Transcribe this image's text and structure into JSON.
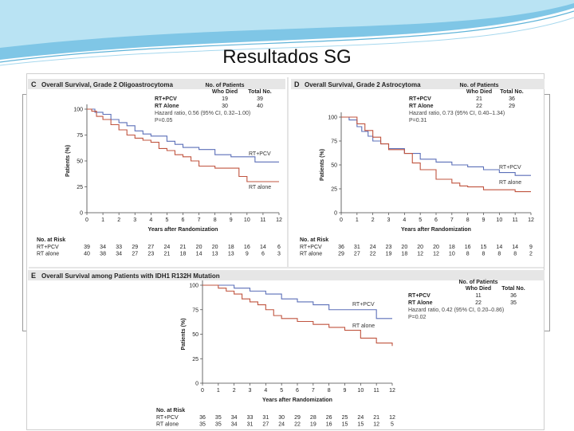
{
  "slide": {
    "title": "Resultados SG"
  },
  "colors": {
    "rt_pcv": "#5b6fb8",
    "rt_alone": "#c0543f",
    "axis": "#444444",
    "header_bg": "#e6e6e6"
  },
  "chart_data": [
    {
      "type": "line",
      "panel": "C",
      "title": "Overall Survival, Grade 2 Oligoastrocytoma",
      "xlabel": "Years after Randomization",
      "ylabel": "Patients (%)",
      "xlim": [
        0,
        12
      ],
      "ylim": [
        0,
        100
      ],
      "xticks": [
        "0",
        "1",
        "2",
        "3",
        "4",
        "5",
        "6",
        "7",
        "8",
        "9",
        "10",
        "11",
        "12"
      ],
      "yticks": [
        "0",
        "25",
        "50",
        "75",
        "100"
      ],
      "table": {
        "header_died": "No. of Patients Who Died",
        "header_total": "Total No.",
        "rows": [
          {
            "name": "RT+PCV",
            "died": "19",
            "total": "39"
          },
          {
            "name": "RT Alone",
            "died": "30",
            "total": "40"
          }
        ],
        "hr": "Hazard ratio, 0.56 (95% CI, 0.32–1.00)",
        "p": "P=0.05"
      },
      "series": [
        {
          "name": "RT+PCV",
          "label": "RT+PCV",
          "x": [
            0,
            0.5,
            1.0,
            1.5,
            2.0,
            2.5,
            3.0,
            3.5,
            4.0,
            5.0,
            5.5,
            6.0,
            7.0,
            8.0,
            9.0,
            10.0,
            10.5,
            12.0
          ],
          "y": [
            100,
            97,
            95,
            90,
            87,
            84,
            79,
            76,
            74,
            69,
            66,
            63,
            61,
            56,
            54,
            54,
            49,
            49
          ]
        },
        {
          "name": "RT alone",
          "label": "RT alone",
          "x": [
            0,
            0.3,
            0.6,
            1.0,
            1.5,
            2.0,
            2.5,
            3.0,
            3.5,
            4.0,
            4.5,
            5.0,
            5.5,
            6.0,
            6.5,
            7.0,
            8.0,
            9.0,
            9.5,
            10.0,
            12.0
          ],
          "y": [
            100,
            98,
            93,
            90,
            85,
            80,
            75,
            72,
            70,
            68,
            62,
            60,
            56,
            54,
            50,
            45,
            43,
            43,
            35,
            30,
            30
          ]
        }
      ],
      "at_risk": {
        "title": "No. at Risk",
        "rows": [
          {
            "name": "RT+PCV",
            "values": [
              "39",
              "34",
              "33",
              "29",
              "27",
              "24",
              "21",
              "20",
              "20",
              "18",
              "16",
              "14",
              "6"
            ]
          },
          {
            "name": "RT alone",
            "values": [
              "40",
              "38",
              "34",
              "27",
              "23",
              "21",
              "18",
              "14",
              "13",
              "13",
              "9",
              "6",
              "3"
            ]
          }
        ]
      }
    },
    {
      "type": "line",
      "panel": "D",
      "title": "Overall Survival, Grade 2 Astrocytoma",
      "xlabel": "Years after Randomization",
      "ylabel": "Patients (%)",
      "xlim": [
        0,
        12
      ],
      "ylim": [
        0,
        100
      ],
      "xticks": [
        "0",
        "1",
        "2",
        "3",
        "4",
        "5",
        "6",
        "7",
        "8",
        "9",
        "10",
        "11",
        "12"
      ],
      "yticks": [
        "0",
        "25",
        "50",
        "75",
        "100"
      ],
      "table": {
        "header_died": "No. of Patients Who Died",
        "header_total": "Total No.",
        "rows": [
          {
            "name": "RT+PCV",
            "died": "21",
            "total": "36"
          },
          {
            "name": "RT Alone",
            "died": "22",
            "total": "29"
          }
        ],
        "hr": "Hazard ratio, 0.73 (95% CI, 0.40–1.34)",
        "p": "P=0.31"
      },
      "series": [
        {
          "name": "RT+PCV",
          "label": "RT+PCV",
          "x": [
            0,
            0.5,
            1.0,
            1.3,
            1.7,
            2.0,
            2.5,
            3.0,
            4.0,
            5.0,
            6.0,
            7.0,
            8.0,
            9.0,
            10.0,
            11.0,
            12.0
          ],
          "y": [
            100,
            97,
            90,
            85,
            80,
            75,
            72,
            67,
            62,
            56,
            53,
            50,
            48,
            45,
            42,
            39,
            39
          ]
        },
        {
          "name": "RT alone",
          "label": "RT alone",
          "x": [
            0,
            0.5,
            1.0,
            1.5,
            2.0,
            2.5,
            3.0,
            4.0,
            4.5,
            5.0,
            6.0,
            7.0,
            7.5,
            8.0,
            9.0,
            11.0,
            12.0
          ],
          "y": [
            100,
            100,
            93,
            86,
            79,
            72,
            66,
            62,
            52,
            45,
            35,
            31,
            28,
            27,
            24,
            22,
            22
          ]
        }
      ],
      "at_risk": {
        "title": "No. at Risk",
        "rows": [
          {
            "name": "RT+PCV",
            "values": [
              "36",
              "31",
              "24",
              "23",
              "20",
              "20",
              "20",
              "18",
              "16",
              "15",
              "14",
              "14",
              "9"
            ]
          },
          {
            "name": "RT alone",
            "values": [
              "29",
              "27",
              "22",
              "19",
              "18",
              "12",
              "12",
              "10",
              "8",
              "8",
              "8",
              "8",
              "2"
            ]
          }
        ]
      }
    },
    {
      "type": "line",
      "panel": "E",
      "title": "Overall Survival among Patients with IDH1 R132H Mutation",
      "xlabel": "Years after Randomization",
      "ylabel": "Patients (%)",
      "xlim": [
        0,
        12
      ],
      "ylim": [
        0,
        100
      ],
      "xticks": [
        "0",
        "1",
        "2",
        "3",
        "4",
        "5",
        "6",
        "7",
        "8",
        "9",
        "10",
        "11",
        "12"
      ],
      "yticks": [
        "0",
        "25",
        "50",
        "75",
        "100"
      ],
      "table": {
        "header_died": "No. of Patients Who Died",
        "header_total": "Total No.",
        "rows": [
          {
            "name": "RT+PCV",
            "died": "11",
            "total": "36"
          },
          {
            "name": "RT Alone",
            "died": "22",
            "total": "35"
          }
        ],
        "hr": "Hazard ratio, 0.42 (95% CI, 0.20–0.86)",
        "p": "P=0.02"
      },
      "series": [
        {
          "name": "RT+PCV",
          "label": "RT+PCV",
          "x": [
            0,
            1.0,
            2.0,
            3.0,
            4.0,
            5.0,
            6.0,
            7.0,
            8.0,
            10.5,
            11.0,
            12.0
          ],
          "y": [
            100,
            100,
            97,
            94,
            91,
            86,
            83,
            80,
            75,
            75,
            66,
            66
          ]
        },
        {
          "name": "RT alone",
          "label": "RT alone",
          "x": [
            0,
            0.5,
            1.0,
            1.5,
            2.0,
            2.5,
            3.0,
            3.5,
            4.0,
            4.5,
            5.0,
            6.0,
            7.0,
            8.0,
            9.0,
            10.0,
            11.0,
            12.0
          ],
          "y": [
            100,
            100,
            97,
            94,
            91,
            86,
            83,
            80,
            75,
            69,
            66,
            63,
            60,
            57,
            54,
            46,
            41,
            38
          ]
        }
      ],
      "at_risk": {
        "title": "No. at Risk",
        "rows": [
          {
            "name": "RT+PCV",
            "values": [
              "36",
              "35",
              "34",
              "33",
              "31",
              "30",
              "29",
              "28",
              "26",
              "25",
              "24",
              "21",
              "12"
            ]
          },
          {
            "name": "RT alone",
            "values": [
              "35",
              "35",
              "34",
              "31",
              "27",
              "24",
              "22",
              "19",
              "16",
              "15",
              "15",
              "12",
              "5"
            ]
          }
        ]
      }
    }
  ]
}
